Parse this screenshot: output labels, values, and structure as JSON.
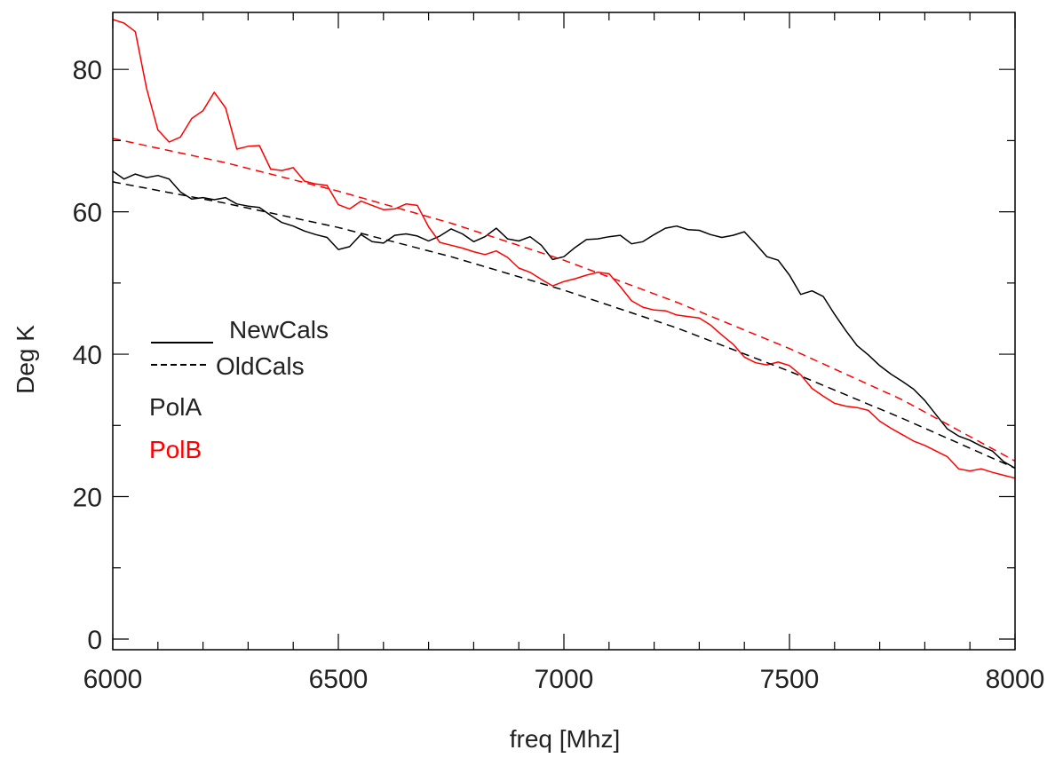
{
  "chart_data": {
    "type": "line",
    "title": "",
    "xlabel": "freq [Mhz]",
    "ylabel": "Deg K",
    "xlim": [
      6000,
      8000
    ],
    "ylim": [
      -1.5,
      88
    ],
    "x_ticks": [
      6000,
      6500,
      7000,
      7500,
      8000
    ],
    "y_ticks": [
      0,
      20,
      40,
      60,
      80
    ],
    "grid": false,
    "legend": {
      "placement": "center-left",
      "line_entries": [
        {
          "label": "NewCals",
          "style": "solid",
          "color": "#000000"
        },
        {
          "label": "OldCals",
          "style": "dashed",
          "color": "#000000"
        }
      ],
      "color_entries": [
        {
          "label": "PolA",
          "color": "#000000"
        },
        {
          "label": "PolB",
          "color": "#ff0000"
        }
      ]
    },
    "series": [
      {
        "name": "PolA NewCals",
        "color": "#000000",
        "style": "solid",
        "x": [
          6000,
          6025,
          6050,
          6075,
          6100,
          6125,
          6150,
          6175,
          6200,
          6225,
          6250,
          6275,
          6300,
          6325,
          6350,
          6375,
          6400,
          6425,
          6450,
          6475,
          6500,
          6525,
          6550,
          6575,
          6600,
          6625,
          6650,
          6675,
          6700,
          6725,
          6750,
          6775,
          6800,
          6825,
          6850,
          6875,
          6900,
          6925,
          6950,
          6975,
          7000,
          7025,
          7050,
          7075,
          7100,
          7125,
          7150,
          7175,
          7200,
          7225,
          7250,
          7275,
          7300,
          7325,
          7350,
          7375,
          7400,
          7425,
          7450,
          7475,
          7500,
          7525,
          7550,
          7575,
          7600,
          7625,
          7650,
          7675,
          7700,
          7725,
          7750,
          7775,
          7800,
          7825,
          7850,
          7875,
          7900,
          7925,
          7950,
          7975,
          8000
        ],
        "y": [
          65.7,
          64.6,
          65.3,
          64.8,
          65.1,
          64.6,
          62.8,
          61.8,
          62.0,
          61.7,
          62.0,
          61.1,
          60.8,
          60.6,
          59.5,
          58.5,
          58.0,
          57.3,
          56.8,
          56.4,
          54.7,
          55.1,
          56.8,
          55.8,
          55.6,
          56.7,
          56.9,
          56.6,
          55.9,
          56.6,
          57.6,
          56.9,
          55.8,
          56.5,
          57.7,
          56.2,
          55.9,
          56.5,
          55.3,
          53.3,
          53.7,
          55.0,
          56.1,
          56.2,
          56.5,
          56.7,
          55.5,
          55.8,
          56.8,
          57.7,
          58.0,
          57.5,
          57.4,
          56.8,
          56.4,
          56.7,
          57.2,
          55.5,
          53.7,
          53.2,
          51.1,
          48.4,
          48.9,
          48.1,
          45.6,
          43.3,
          41.2,
          39.9,
          38.4,
          37.2,
          36.2,
          35.1,
          33.5,
          31.5,
          29.5,
          28.5,
          27.9,
          27.1,
          26.4,
          24.9,
          24.0
        ]
      },
      {
        "name": "PolB NewCals",
        "color": "#ff0000",
        "style": "solid",
        "x": [
          6000,
          6025,
          6050,
          6075,
          6100,
          6125,
          6150,
          6175,
          6200,
          6225,
          6250,
          6275,
          6300,
          6325,
          6350,
          6375,
          6400,
          6425,
          6450,
          6475,
          6500,
          6525,
          6550,
          6575,
          6600,
          6625,
          6650,
          6675,
          6700,
          6725,
          6750,
          6775,
          6800,
          6825,
          6850,
          6875,
          6900,
          6925,
          6950,
          6975,
          7000,
          7025,
          7050,
          7075,
          7100,
          7125,
          7150,
          7175,
          7200,
          7225,
          7250,
          7275,
          7300,
          7325,
          7350,
          7375,
          7400,
          7425,
          7450,
          7475,
          7500,
          7525,
          7550,
          7575,
          7600,
          7625,
          7650,
          7675,
          7700,
          7725,
          7750,
          7775,
          7800,
          7825,
          7850,
          7875,
          7900,
          7925,
          7950,
          7975,
          8000
        ],
        "y": [
          87.0,
          86.5,
          85.3,
          77.3,
          71.5,
          69.8,
          70.5,
          73.1,
          74.2,
          76.8,
          74.6,
          68.8,
          69.2,
          69.3,
          66.0,
          65.8,
          66.2,
          64.3,
          63.9,
          63.7,
          61.0,
          60.4,
          61.5,
          60.9,
          60.3,
          60.4,
          61.1,
          60.9,
          57.9,
          55.7,
          55.3,
          54.9,
          54.4,
          54.0,
          54.5,
          53.6,
          52.1,
          51.5,
          50.5,
          49.6,
          50.2,
          50.6,
          51.1,
          51.5,
          51.3,
          49.5,
          47.5,
          46.6,
          46.2,
          46.1,
          45.5,
          45.3,
          45.1,
          44.1,
          42.7,
          41.4,
          39.6,
          38.8,
          38.5,
          38.9,
          38.4,
          37.1,
          35.2,
          34.1,
          33.1,
          32.7,
          32.5,
          32.1,
          30.6,
          29.6,
          28.7,
          27.8,
          27.2,
          26.4,
          25.6,
          23.9,
          23.6,
          23.9,
          23.4,
          23.0,
          22.6
        ]
      },
      {
        "name": "PolA OldCals",
        "color": "#000000",
        "style": "dashed",
        "x": [
          6000,
          6250,
          6500,
          6750,
          7000,
          7250,
          7500,
          7750,
          8000
        ],
        "y": [
          64.2,
          61.2,
          57.8,
          53.7,
          49.0,
          43.7,
          37.6,
          31.0,
          24.0
        ]
      },
      {
        "name": "PolB OldCals",
        "color": "#ff0000",
        "style": "dashed",
        "x": [
          6000,
          6250,
          6500,
          6750,
          7000,
          7250,
          7500,
          7750,
          8000
        ],
        "y": [
          70.3,
          66.9,
          62.9,
          58.4,
          53.2,
          47.3,
          40.8,
          33.6,
          25.0
        ]
      }
    ]
  }
}
